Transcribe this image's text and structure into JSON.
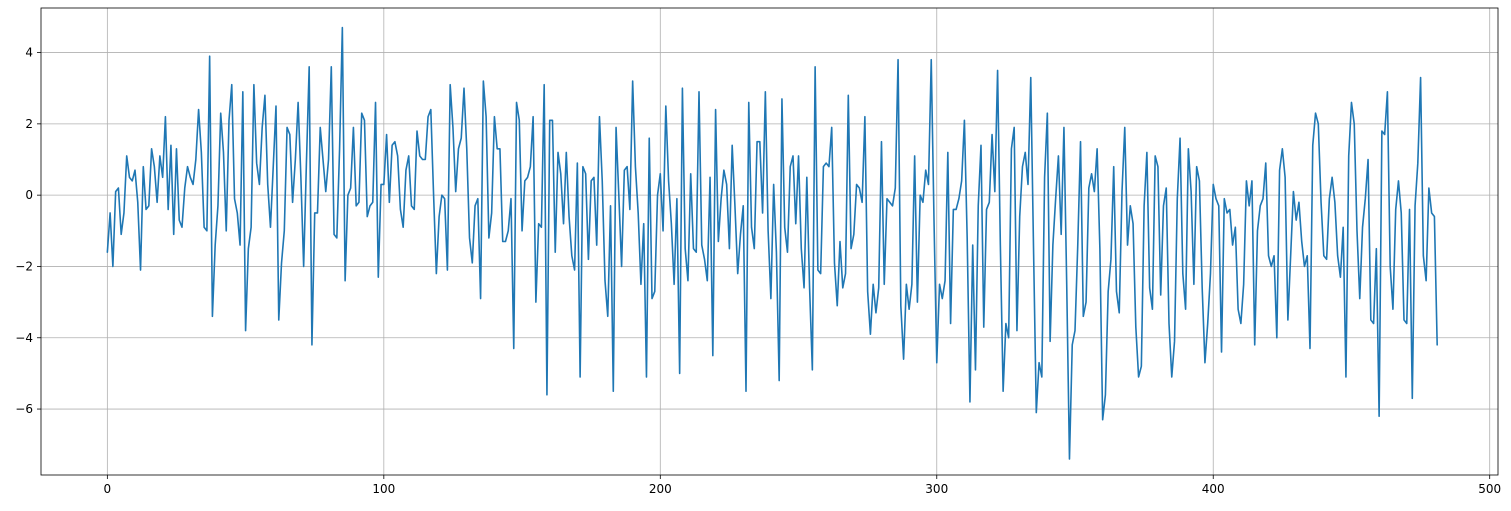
{
  "chart_data": {
    "type": "line",
    "title": "",
    "xlabel": "",
    "ylabel": "",
    "xlim": [
      -24,
      503
    ],
    "ylim": [
      -7.85,
      5.25
    ],
    "grid": true,
    "xticks": [
      0,
      100,
      200,
      300,
      400,
      500
    ],
    "yticks": [
      -6,
      -4,
      -2,
      0,
      2,
      4
    ],
    "x_start": 0,
    "x_step": 1,
    "series": [
      {
        "color": "#1f77b4",
        "values": [
          -1.6,
          -0.5,
          -2.0,
          0.1,
          0.2,
          -1.1,
          -0.5,
          1.1,
          0.5,
          0.4,
          0.7,
          -0.2,
          -2.1,
          0.8,
          -0.4,
          -0.3,
          1.3,
          0.8,
          -0.2,
          1.1,
          0.5,
          2.2,
          -0.4,
          1.4,
          -1.1,
          1.3,
          -0.7,
          -0.9,
          0.2,
          0.8,
          0.5,
          0.3,
          1.0,
          2.4,
          1.2,
          -0.9,
          -1.0,
          3.9,
          -3.4,
          -1.4,
          -0.3,
          2.3,
          1.2,
          -1.0,
          2.1,
          3.1,
          -0.1,
          -0.5,
          -1.4,
          2.9,
          -3.8,
          -1.5,
          -0.9,
          3.1,
          0.9,
          0.3,
          1.9,
          2.8,
          0.3,
          -0.9,
          0.8,
          2.5,
          -3.5,
          -1.9,
          -1.0,
          1.9,
          1.7,
          -0.2,
          1.0,
          2.6,
          0.5,
          -2.0,
          0.9,
          3.6,
          -4.2,
          -0.5,
          -0.5,
          1.9,
          1.0,
          0.1,
          1.0,
          3.6,
          -1.1,
          -1.2,
          1.3,
          4.7,
          -2.4,
          0.0,
          0.2,
          1.9,
          -0.3,
          -0.2,
          2.3,
          2.1,
          -0.6,
          -0.3,
          -0.2,
          2.6,
          -2.3,
          0.3,
          0.3,
          1.7,
          -0.2,
          1.4,
          1.5,
          1.1,
          -0.4,
          -0.9,
          0.7,
          1.1,
          -0.3,
          -0.4,
          1.8,
          1.1,
          1.0,
          1.0,
          2.2,
          2.4,
          0.0,
          -2.2,
          -0.6,
          0.0,
          -0.1,
          -2.1,
          3.1,
          1.9,
          0.1,
          1.3,
          1.6,
          3.0,
          1.3,
          -1.2,
          -1.9,
          -0.3,
          -0.1,
          -2.9,
          3.2,
          2.2,
          -1.2,
          -0.5,
          2.2,
          1.3,
          1.3,
          -1.3,
          -1.3,
          -1.0,
          -0.1,
          -4.3,
          2.6,
          2.1,
          -1.0,
          0.4,
          0.5,
          0.8,
          2.2,
          -3.0,
          -0.8,
          -0.9,
          3.1,
          -5.6,
          2.1,
          2.1,
          -1.6,
          1.2,
          0.6,
          -0.8,
          1.2,
          -0.6,
          -1.7,
          -2.1,
          0.9,
          -5.1,
          0.8,
          0.6,
          -1.8,
          0.4,
          0.5,
          -1.4,
          2.2,
          0.4,
          -2.4,
          -3.4,
          -0.3,
          -5.5,
          1.9,
          0.0,
          -2.0,
          0.7,
          0.8,
          -0.4,
          3.2,
          0.8,
          -0.5,
          -2.5,
          -0.8,
          -5.1,
          1.6,
          -2.9,
          -2.7,
          0.0,
          0.6,
          -1.0,
          2.5,
          0.4,
          -0.8,
          -2.5,
          -0.1,
          -5.0,
          3.0,
          -1.5,
          -2.4,
          0.6,
          -1.5,
          -1.6,
          2.9,
          -1.4,
          -1.8,
          -2.4,
          0.5,
          -4.5,
          2.4,
          -1.3,
          -0.1,
          0.7,
          0.3,
          -1.5,
          1.4,
          -0.3,
          -2.2,
          -1.1,
          -0.3,
          -5.5,
          2.6,
          -0.9,
          -1.5,
          1.5,
          1.5,
          -0.5,
          2.9,
          -1.0,
          -2.9,
          0.3,
          -1.6,
          -5.2,
          2.7,
          -0.9,
          -1.6,
          0.8,
          1.1,
          -0.8,
          1.1,
          -1.5,
          -2.6,
          0.5,
          -2.6,
          -4.9,
          3.6,
          -2.1,
          -2.2,
          0.8,
          0.9,
          0.8,
          1.9,
          -1.9,
          -3.1,
          -1.3,
          -2.6,
          -2.2,
          2.8,
          -1.5,
          -1.1,
          0.3,
          0.2,
          -0.2,
          2.2,
          -2.7,
          -3.9,
          -2.5,
          -3.3,
          -2.6,
          1.5,
          -2.5,
          -0.1,
          -0.2,
          -0.3,
          0.2,
          3.8,
          -3.1,
          -4.6,
          -2.5,
          -3.2,
          -2.5,
          1.1,
          -3.0,
          0.0,
          -0.2,
          0.7,
          0.3,
          3.8,
          -0.7,
          -4.7,
          -2.5,
          -2.9,
          -2.4,
          1.2,
          -3.6,
          -0.4,
          -0.4,
          -0.1,
          0.4,
          2.1,
          -1.2,
          -5.8,
          -1.4,
          -4.9,
          -0.3,
          1.4,
          -3.7,
          -0.4,
          -0.2,
          1.7,
          0.1,
          3.5,
          -1.4,
          -5.5,
          -3.6,
          -4.0,
          1.3,
          1.9,
          -3.8,
          -0.6,
          0.8,
          1.2,
          0.3,
          3.3,
          -1.5,
          -6.1,
          -4.7,
          -5.1,
          0.5,
          2.3,
          -4.1,
          -1.4,
          -0.1,
          1.1,
          -1.1,
          1.9,
          -2.5,
          -7.4,
          -4.2,
          -3.8,
          -1.4,
          1.5,
          -3.4,
          -3.0,
          0.2,
          0.6,
          0.1,
          1.3,
          -1.5,
          -6.3,
          -5.6,
          -2.7,
          -1.8,
          0.8,
          -2.7,
          -3.3,
          0.1,
          1.9,
          -1.4,
          -0.3,
          -0.8,
          -3.7,
          -5.1,
          -4.8,
          -0.3,
          1.2,
          -2.6,
          -3.2,
          1.1,
          0.8,
          -2.8,
          -0.3,
          0.2,
          -3.6,
          -5.1,
          -4.1,
          -0.1,
          1.6,
          -2.2,
          -3.2,
          1.3,
          0.1,
          -2.5,
          0.8,
          0.4,
          -2.6,
          -4.7,
          -3.6,
          -2.2,
          0.3,
          -0.1,
          -0.3,
          -4.4,
          -0.1,
          -0.5,
          -0.4,
          -1.4,
          -0.9,
          -3.2,
          -3.6,
          -2.5,
          0.4,
          -0.3,
          0.4,
          -4.2,
          -1.0,
          -0.3,
          -0.1,
          0.9,
          -1.7,
          -2.0,
          -1.7,
          -4.0,
          0.7,
          1.3,
          0.5,
          -3.5,
          -1.7,
          0.1,
          -0.7,
          -0.2,
          -1.3,
          -2.0,
          -1.7,
          -4.3,
          1.4,
          2.3,
          2.0,
          -0.2,
          -1.7,
          -1.8,
          -0.1,
          0.5,
          -0.2,
          -1.7,
          -2.3,
          -0.9,
          -5.1,
          1.1,
          2.6,
          2.0,
          -1.0,
          -2.9,
          -0.9,
          -0.1,
          1.0,
          -3.5,
          -3.6,
          -1.5,
          -6.2,
          1.8,
          1.7,
          2.9,
          -2.0,
          -3.2,
          -0.4,
          0.4,
          -0.5,
          -3.5,
          -3.6,
          -0.4,
          -5.7,
          -0.3,
          0.9,
          3.3,
          -1.7,
          -2.4,
          0.2,
          -0.5,
          -0.6,
          -4.2
        ]
      }
    ]
  }
}
